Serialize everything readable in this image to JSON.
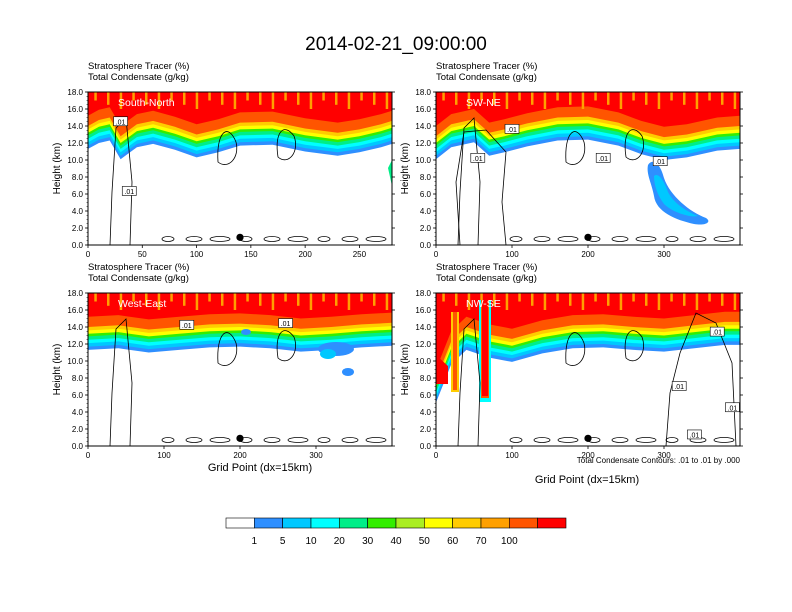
{
  "title": "2014-02-21_09:00:00",
  "header_line1": "Stratosphere Tracer   (%)",
  "header_line2": "Total Condensate   (g/kg)",
  "y_axis_label": "Height (km)",
  "x_axis_label": "Grid Point (dx=15km)",
  "contour_note": "Total Condensate Contours: .01 to .01 by .000",
  "contour_label": ".01",
  "chart_data": [
    {
      "type": "heatmap",
      "panel": "South-North",
      "region_label": "South-North",
      "ylabel": "Height (km)",
      "xlabel": "",
      "xlim": [
        0,
        280
      ],
      "ylim": [
        0,
        18
      ],
      "x_ticks": [
        "0",
        "50",
        "100",
        "150",
        "200",
        "250"
      ],
      "x_tick_values": [
        0,
        50,
        100,
        150,
        200,
        250
      ],
      "y_ticks": [
        "0.0",
        "2.0",
        "4.0",
        "6.0",
        "8.0",
        "10.0",
        "12.0",
        "14.0",
        "16.0",
        "18.0"
      ],
      "y_tick_values": [
        0,
        2,
        4,
        6,
        8,
        10,
        12,
        14,
        16,
        18
      ],
      "marker_x": 140,
      "contour_labels": [
        {
          "x": 30,
          "y": 14.5,
          "text": ".01"
        },
        {
          "x": 38,
          "y": 6.3,
          "text": ".01"
        }
      ],
      "tropopause_km": [
        [
          0,
          15.2
        ],
        [
          10,
          15.9
        ],
        [
          20,
          16.2
        ],
        [
          30,
          14.0
        ],
        [
          45,
          15.4
        ],
        [
          60,
          15.8
        ],
        [
          80,
          15.1
        ],
        [
          100,
          14.2
        ],
        [
          120,
          14.8
        ],
        [
          140,
          15.6
        ],
        [
          170,
          15.7
        ],
        [
          200,
          14.9
        ],
        [
          230,
          14.4
        ],
        [
          250,
          14.8
        ],
        [
          270,
          15.4
        ],
        [
          280,
          15.8
        ]
      ]
    },
    {
      "type": "heatmap",
      "panel": "SW-NE",
      "region_label": "SW-NE",
      "ylabel": "Height (km)",
      "xlabel": "",
      "xlim": [
        0,
        400
      ],
      "ylim": [
        0,
        18
      ],
      "x_ticks": [
        "0",
        "100",
        "200",
        "300"
      ],
      "x_tick_values": [
        0,
        100,
        200,
        300
      ],
      "y_ticks": [
        "0.0",
        "2.0",
        "4.0",
        "6.0",
        "8.0",
        "10.0",
        "12.0",
        "14.0",
        "16.0",
        "18.0"
      ],
      "y_tick_values": [
        0,
        2,
        4,
        6,
        8,
        10,
        12,
        14,
        16,
        18
      ],
      "marker_x": 200,
      "contour_labels": [
        {
          "x": 100,
          "y": 13.6,
          "text": ".01"
        },
        {
          "x": 55,
          "y": 10.2,
          "text": ".01"
        },
        {
          "x": 220,
          "y": 10.2,
          "text": ".01"
        },
        {
          "x": 295,
          "y": 9.8,
          "text": ".01"
        }
      ],
      "tropopause_km": [
        [
          0,
          14.0
        ],
        [
          20,
          15.4
        ],
        [
          50,
          16.0
        ],
        [
          70,
          14.4
        ],
        [
          90,
          14.8
        ],
        [
          120,
          15.5
        ],
        [
          160,
          16.2
        ],
        [
          200,
          16.3
        ],
        [
          240,
          15.6
        ],
        [
          270,
          14.6
        ],
        [
          300,
          13.9
        ],
        [
          330,
          14.2
        ],
        [
          370,
          15.0
        ],
        [
          400,
          15.2
        ]
      ]
    },
    {
      "type": "heatmap",
      "panel": "West-East",
      "region_label": "West-East",
      "ylabel": "Height (km)",
      "xlabel": "Grid Point (dx=15km)",
      "xlim": [
        0,
        400
      ],
      "ylim": [
        0,
        18
      ],
      "x_ticks": [
        "0",
        "100",
        "200",
        "300"
      ],
      "x_tick_values": [
        0,
        100,
        200,
        300
      ],
      "y_ticks": [
        "0.0",
        "2.0",
        "4.0",
        "6.0",
        "8.0",
        "10.0",
        "12.0",
        "14.0",
        "16.0",
        "18.0"
      ],
      "y_tick_values": [
        0,
        2,
        4,
        6,
        8,
        10,
        12,
        14,
        16,
        18
      ],
      "marker_x": 200,
      "contour_labels": [
        {
          "x": 130,
          "y": 14.2,
          "text": ".01"
        },
        {
          "x": 260,
          "y": 14.4,
          "text": ".01"
        }
      ],
      "tropopause_km": [
        [
          0,
          15.2
        ],
        [
          40,
          15.4
        ],
        [
          80,
          14.9
        ],
        [
          120,
          15.2
        ],
        [
          160,
          15.5
        ],
        [
          200,
          15.6
        ],
        [
          240,
          15.4
        ],
        [
          280,
          15.0
        ],
        [
          320,
          15.2
        ],
        [
          360,
          15.5
        ],
        [
          400,
          15.7
        ]
      ]
    },
    {
      "type": "heatmap",
      "panel": "NW-SE",
      "region_label": "NW-SE",
      "ylabel": "Height (km)",
      "xlabel": "Grid Point (dx=15km)",
      "xlim": [
        0,
        400
      ],
      "ylim": [
        0,
        18
      ],
      "x_ticks": [
        "0",
        "100",
        "200",
        "300"
      ],
      "x_tick_values": [
        0,
        100,
        200,
        300
      ],
      "y_ticks": [
        "0.0",
        "2.0",
        "4.0",
        "6.0",
        "8.0",
        "10.0",
        "12.0",
        "14.0",
        "16.0",
        "18.0"
      ],
      "y_tick_values": [
        0,
        2,
        4,
        6,
        8,
        10,
        12,
        14,
        16,
        18
      ],
      "marker_x": 200,
      "contour_labels": [
        {
          "x": 370,
          "y": 13.4,
          "text": ".01"
        },
        {
          "x": 320,
          "y": 7.0,
          "text": ".01"
        },
        {
          "x": 390,
          "y": 4.5,
          "text": ".01"
        },
        {
          "x": 340,
          "y": 1.3,
          "text": ".01"
        }
      ],
      "tropopause_km": [
        [
          0,
          9.0
        ],
        [
          20,
          13.5
        ],
        [
          40,
          15.2
        ],
        [
          70,
          14.3
        ],
        [
          100,
          13.8
        ],
        [
          140,
          14.8
        ],
        [
          180,
          15.4
        ],
        [
          220,
          15.5
        ],
        [
          260,
          15.2
        ],
        [
          300,
          15.0
        ],
        [
          340,
          15.4
        ],
        [
          380,
          15.8
        ],
        [
          400,
          15.8
        ]
      ]
    }
  ],
  "colorbar": {
    "levels": [
      "1",
      "5",
      "10",
      "20",
      "30",
      "40",
      "50",
      "60",
      "70",
      "100"
    ],
    "colors": [
      "#ffffff",
      "#2e8fff",
      "#00c8ff",
      "#00ffff",
      "#00ee88",
      "#33ee00",
      "#aaee22",
      "#ffff00",
      "#ffcc00",
      "#ffa000",
      "#ff5500",
      "#ff0000"
    ]
  }
}
